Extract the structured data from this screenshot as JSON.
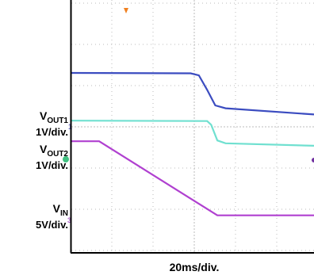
{
  "chart_data": {
    "type": "line",
    "xlabel": "20ms/div.",
    "xlim": [
      0,
      118
    ],
    "ylim": [
      -3.06,
      3.08
    ],
    "grid": true,
    "channel_labels": [
      {
        "main": "V",
        "sub": "OUT1",
        "scale": "1V/div."
      },
      {
        "main": "V",
        "sub": "OUT2",
        "scale": "1V/div."
      },
      {
        "main": "V",
        "sub": "IN",
        "scale": "5V/div."
      }
    ],
    "series": [
      {
        "color": "#3b4cc0",
        "x": [
          0,
          58,
          62,
          66,
          70,
          75,
          118
        ],
        "values": [
          1.31,
          1.3,
          1.25,
          0.9,
          0.52,
          0.45,
          0.3
        ]
      },
      {
        "color": "#70e0d0",
        "x": [
          0,
          66,
          68,
          71,
          75,
          118
        ],
        "values": [
          0.15,
          0.14,
          0.05,
          -0.33,
          -0.4,
          -0.46
        ]
      },
      {
        "color": "#b040d0",
        "x": [
          0,
          13.5,
          71,
          118
        ],
        "values": [
          -0.35,
          -0.35,
          -2.15,
          -2.15
        ]
      }
    ]
  }
}
